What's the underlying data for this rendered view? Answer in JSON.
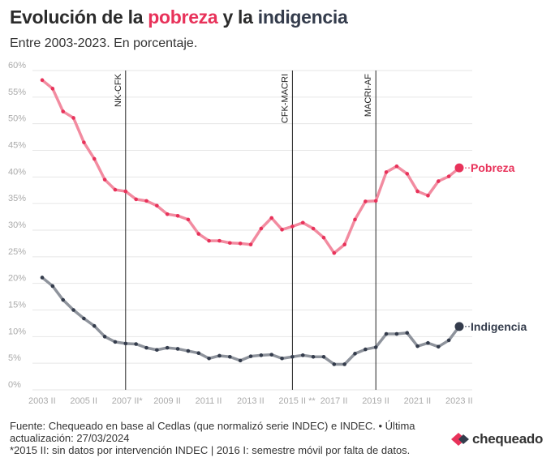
{
  "header": {
    "title_part1": "Evolución de la ",
    "title_highlight1": "pobreza",
    "title_part2": " y la ",
    "title_highlight2": "indigencia",
    "subtitle": "Entre 2003-2023. En porcentaje."
  },
  "colors": {
    "pobreza": "#e8325a",
    "indigencia": "#343c4c",
    "grid": "#e6e6e6",
    "axis_label": "#aaaaaa"
  },
  "footer": {
    "source": "Fuente: Chequeado en base al Cedlas (que normalizó serie INDEC) e INDEC. • Última actualización: 27/03/2024",
    "note": "*2015 II: sin datos por intervención INDEC | 2016 I: semestre móvil por falta de datos."
  },
  "logo": {
    "text": "chequeado",
    "icon": "chequeado-logo-icon"
  },
  "chart_data": {
    "type": "line",
    "ylim": [
      0,
      60
    ],
    "y_ticks": [
      0,
      5,
      10,
      15,
      20,
      25,
      30,
      35,
      40,
      45,
      50,
      55,
      60
    ],
    "y_tick_labels": [
      "0%",
      "5%",
      "10%",
      "15%",
      "20%",
      "25%",
      "30%",
      "35%",
      "40%",
      "45%",
      "50%",
      "55%",
      "60%"
    ],
    "x_tick_labels": [
      "2003 II",
      "2005 II",
      "2007 II*",
      "2009 II",
      "2011 II",
      "2013 II",
      "2015 II **",
      "2017 II",
      "2019 II",
      "2021 II",
      "2023 II"
    ],
    "x_tick_index": [
      0,
      4,
      8,
      12,
      16,
      20,
      24,
      28,
      32,
      36,
      40
    ],
    "grid": true,
    "periods": [
      {
        "label": "NK-CFK",
        "index": 8
      },
      {
        "label": "CFK-MACRI",
        "index": 24
      },
      {
        "label": "MACRI-AF",
        "index": 32
      }
    ],
    "series": [
      {
        "name": "Pobreza",
        "values": [
          58.2,
          56.6,
          52.3,
          51.1,
          46.5,
          43.4,
          39.5,
          37.6,
          37.3,
          35.8,
          35.5,
          34.6,
          33.0,
          32.7,
          32.0,
          29.3,
          28.0,
          28.0,
          27.6,
          27.5,
          27.3,
          30.3,
          32.3,
          30.1,
          30.7,
          31.4,
          30.3,
          28.6,
          25.7,
          27.3,
          32.0,
          35.4,
          35.5,
          40.9,
          42.0,
          40.6,
          37.3,
          36.5,
          39.2,
          40.1,
          41.7
        ]
      },
      {
        "name": "Indigencia",
        "values": [
          21.1,
          19.5,
          16.9,
          15.0,
          13.4,
          12.0,
          10.0,
          9.0,
          8.7,
          8.6,
          7.9,
          7.5,
          7.9,
          7.7,
          7.3,
          6.9,
          5.9,
          6.4,
          6.2,
          5.5,
          6.3,
          6.5,
          6.6,
          5.9,
          6.2,
          6.5,
          6.2,
          6.2,
          4.8,
          4.8,
          6.8,
          7.6,
          8.0,
          10.5,
          10.5,
          10.7,
          8.2,
          8.8,
          8.1,
          9.3,
          11.9
        ]
      }
    ]
  }
}
